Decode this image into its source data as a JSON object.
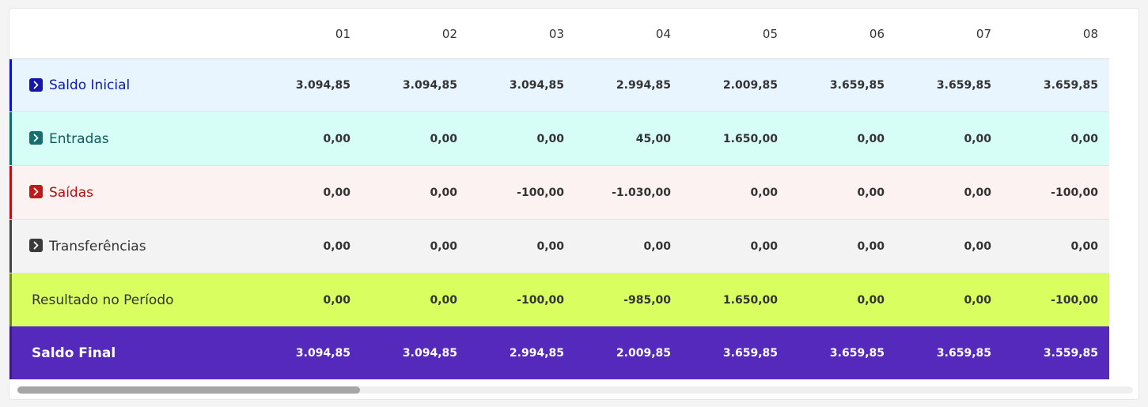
{
  "columns": [
    "01",
    "02",
    "03",
    "04",
    "05",
    "06",
    "07",
    "08"
  ],
  "rows": [
    {
      "key": "saldo-inicial",
      "label": "Saldo Inicial",
      "expandable": true,
      "accent_color": "#0a13d6",
      "values": [
        "3.094,85",
        "3.094,85",
        "3.094,85",
        "2.994,85",
        "2.009,85",
        "3.659,85",
        "3.659,85",
        "3.659,85"
      ]
    },
    {
      "key": "entradas",
      "label": "Entradas",
      "expandable": true,
      "accent_color": "#0d6e6e",
      "values": [
        "0,00",
        "0,00",
        "0,00",
        "45,00",
        "1.650,00",
        "0,00",
        "0,00",
        "0,00"
      ]
    },
    {
      "key": "saidas",
      "label": "Saídas",
      "expandable": true,
      "accent_color": "#c20f0f",
      "values": [
        "0,00",
        "0,00",
        "-100,00",
        "-1.030,00",
        "0,00",
        "0,00",
        "0,00",
        "-100,00"
      ]
    },
    {
      "key": "transferencias",
      "label": "Transferências",
      "expandable": true,
      "accent_color": "#444444",
      "values": [
        "0,00",
        "0,00",
        "0,00",
        "0,00",
        "0,00",
        "0,00",
        "0,00",
        "0,00"
      ]
    },
    {
      "key": "resultado",
      "label": "Resultado no Período",
      "expandable": false,
      "accent_color": "#6a8a12",
      "values": [
        "0,00",
        "0,00",
        "-100,00",
        "-985,00",
        "1.650,00",
        "0,00",
        "0,00",
        "-100,00"
      ]
    },
    {
      "key": "saldo-final",
      "label": "Saldo Final",
      "expandable": false,
      "accent_color": "#3b1a8c",
      "values": [
        "3.094,85",
        "3.094,85",
        "2.994,85",
        "2.009,85",
        "3.659,85",
        "3.659,85",
        "3.659,85",
        "3.559,85"
      ]
    }
  ],
  "icons": {
    "expand": "chevron-right-icon"
  }
}
